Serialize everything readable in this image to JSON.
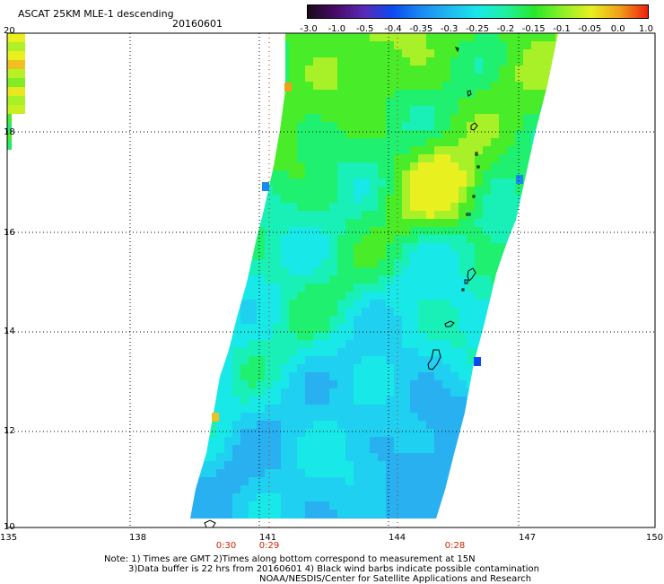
{
  "title": "ASCAT 25KM MLE-1 descending",
  "date": "20160601",
  "colorbar": {
    "labels": [
      "-3.0",
      "-1.0",
      "-0.5",
      "-0.4",
      "-0.35",
      "-0.3",
      "-0.25",
      "-0.2",
      "-0.15",
      "-0.1",
      "-0.05",
      "0.0",
      "1.0"
    ],
    "colors": [
      "#1a0a1a",
      "#4a0a6a",
      "#5a2ab8",
      "#0a4af0",
      "#1a8af0",
      "#20b8f0",
      "#18e8e8",
      "#20f0a0",
      "#28e828",
      "#8ef028",
      "#e8f020",
      "#f0a018",
      "#f02010"
    ]
  },
  "axes": {
    "lat_labels": [
      "20",
      "18",
      "16",
      "14",
      "12",
      "10"
    ],
    "lon_labels": [
      "135",
      "138",
      "141",
      "144",
      "147",
      "150"
    ]
  },
  "times": [
    "0:30",
    "0:29",
    "0:28"
  ],
  "notes": [
    "Note: 1) Times are GMT 2)Times along bottom correspond to measurement at 15N",
    "3)Data buffer is 22 hrs from 20160601 4) Black wind barbs indicate possible contamination",
    "NOAA/NESDIS/Center for Satellite Applications and Research"
  ]
}
